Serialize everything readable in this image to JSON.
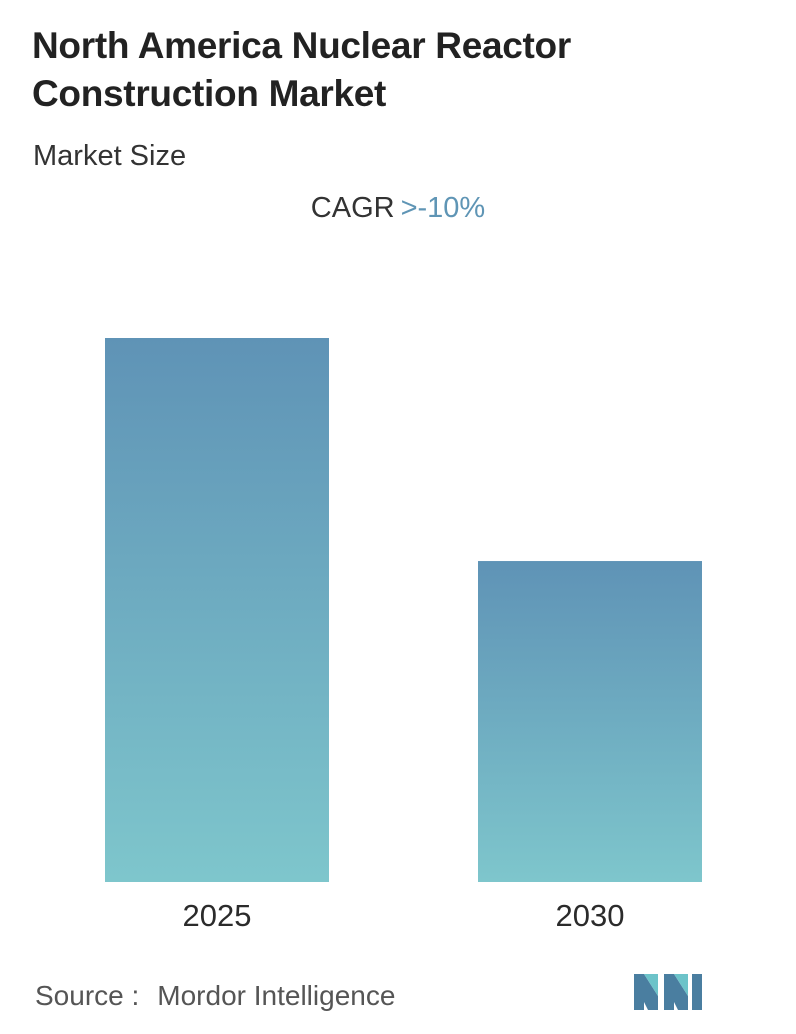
{
  "header": {
    "title_line1": "North America Nuclear Reactor",
    "title_line2": "Construction Market",
    "subtitle": "Market Size"
  },
  "cagr": {
    "label": "CAGR",
    "value": ">-10%"
  },
  "colors": {
    "bar_top": "#5f93b6",
    "bar_bottom": "#7ec6cc",
    "accent": "#5f95b5",
    "logo_dark": "#4a7ea0",
    "logo_light": "#6cc3c9"
  },
  "chart_data": {
    "type": "bar",
    "categories": [
      "2025",
      "2030"
    ],
    "values": [
      1.0,
      0.59
    ],
    "value_note": "",
    "title": "",
    "xlabel": "",
    "ylabel": "",
    "ylim": [
      0,
      1.0
    ],
    "grid": false,
    "legend": "none"
  },
  "footer": {
    "source_label": "Source :",
    "source_name": "Mordor Intelligence",
    "logo_icon": "mordor-intelligence-logo-icon"
  }
}
